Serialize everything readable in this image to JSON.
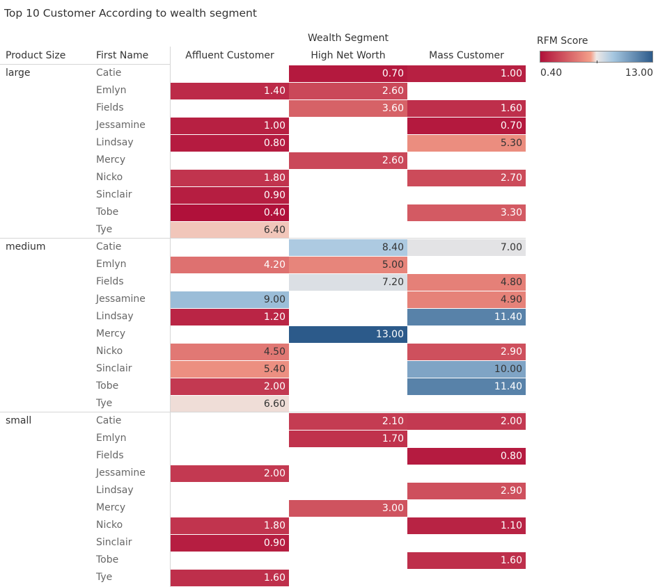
{
  "title": "Top 10 Customer According to wealth segment",
  "headers": {
    "wealth_segment": "Wealth Segment",
    "product_size": "Product Size",
    "first_name": "First Name"
  },
  "legend": {
    "title": "RFM Score",
    "min_label": "0.40",
    "max_label": "13.00",
    "colors": {
      "low": "#b0113a",
      "mid_low": "#f4a08a",
      "mid": "#eee8e6",
      "mid_high": "#a6c7e0",
      "high": "#2c5a8a"
    }
  },
  "chart_data": {
    "type": "heatmap",
    "title": "Top 10 Customer According to wealth segment",
    "column_dimension": "Wealth Segment",
    "columns": [
      "Affluent Customer",
      "High Net Worth",
      "Mass Customer"
    ],
    "row_dimensions": [
      "Product Size",
      "First Name"
    ],
    "color_measure": "RFM Score",
    "color_range": [
      0.4,
      13.0
    ],
    "groups": [
      {
        "name": "large",
        "rows": [
          {
            "name": "Catie",
            "values": [
              null,
              0.7,
              1.0
            ]
          },
          {
            "name": "Emlyn",
            "values": [
              1.4,
              2.6,
              null
            ]
          },
          {
            "name": "Fields",
            "values": [
              null,
              3.6,
              1.6
            ]
          },
          {
            "name": "Jessamine",
            "values": [
              1.0,
              null,
              0.7
            ]
          },
          {
            "name": "Lindsay",
            "values": [
              0.8,
              null,
              5.3
            ]
          },
          {
            "name": "Mercy",
            "values": [
              null,
              2.6,
              null
            ]
          },
          {
            "name": "Nicko",
            "values": [
              1.8,
              null,
              2.7
            ]
          },
          {
            "name": "Sinclair",
            "values": [
              0.9,
              null,
              null
            ]
          },
          {
            "name": "Tobe",
            "values": [
              0.4,
              null,
              3.3
            ]
          },
          {
            "name": "Tye",
            "values": [
              6.4,
              null,
              null
            ]
          }
        ]
      },
      {
        "name": "medium",
        "rows": [
          {
            "name": "Catie",
            "values": [
              null,
              8.4,
              7.0
            ]
          },
          {
            "name": "Emlyn",
            "values": [
              4.2,
              5.0,
              null
            ]
          },
          {
            "name": "Fields",
            "values": [
              null,
              7.2,
              4.8
            ]
          },
          {
            "name": "Jessamine",
            "values": [
              9.0,
              null,
              4.9
            ]
          },
          {
            "name": "Lindsay",
            "values": [
              1.2,
              null,
              11.4
            ]
          },
          {
            "name": "Mercy",
            "values": [
              null,
              13.0,
              null
            ]
          },
          {
            "name": "Nicko",
            "values": [
              4.5,
              null,
              2.9
            ]
          },
          {
            "name": "Sinclair",
            "values": [
              5.4,
              null,
              10.0
            ]
          },
          {
            "name": "Tobe",
            "values": [
              2.0,
              null,
              11.4
            ]
          },
          {
            "name": "Tye",
            "values": [
              6.6,
              null,
              null
            ]
          }
        ]
      },
      {
        "name": "small",
        "rows": [
          {
            "name": "Catie",
            "values": [
              null,
              2.1,
              2.0
            ]
          },
          {
            "name": "Emlyn",
            "values": [
              null,
              1.7,
              null
            ]
          },
          {
            "name": "Fields",
            "values": [
              null,
              null,
              0.8
            ]
          },
          {
            "name": "Jessamine",
            "values": [
              2.0,
              null,
              null
            ]
          },
          {
            "name": "Lindsay",
            "values": [
              null,
              null,
              2.9
            ]
          },
          {
            "name": "Mercy",
            "values": [
              null,
              3.0,
              null
            ]
          },
          {
            "name": "Nicko",
            "values": [
              1.8,
              null,
              1.1
            ]
          },
          {
            "name": "Sinclair",
            "values": [
              0.9,
              null,
              null
            ]
          },
          {
            "name": "Tobe",
            "values": [
              null,
              null,
              1.6
            ]
          },
          {
            "name": "Tye",
            "values": [
              1.6,
              null,
              null
            ]
          }
        ]
      }
    ]
  }
}
